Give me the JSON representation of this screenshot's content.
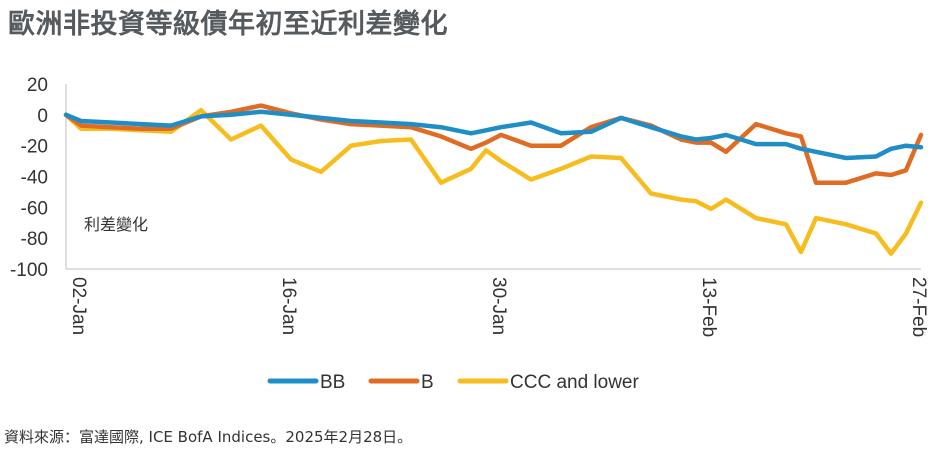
{
  "title": "歐洲非投資等級債年初至近利差變化",
  "source": "資料來源：富達國際, ICE BofA Indices。2025年2月28日。",
  "chart_data": {
    "type": "line",
    "title": "歐洲非投資等級債年初至近利差變化",
    "annotation": "利差變化",
    "ylim": [
      -100,
      20
    ],
    "yticks": [
      20,
      0,
      -20,
      -40,
      -60,
      -80,
      -100
    ],
    "xlim": [
      0,
      57
    ],
    "x_tick_positions": [
      0,
      14,
      28,
      42,
      56
    ],
    "x_tick_labels": [
      "02-Jan",
      "16-Jan",
      "30-Jan",
      "13-Feb",
      "27-Feb"
    ],
    "legend_position": "bottom",
    "grid": false,
    "series": [
      {
        "name": "BB",
        "color": "#1f8ec7",
        "x": [
          0,
          1,
          3,
          5,
          7,
          9,
          11,
          13,
          15,
          17,
          19,
          21,
          23,
          25,
          27,
          28,
          29,
          31,
          33,
          35,
          37,
          39,
          41,
          42,
          43,
          44,
          46,
          48,
          49,
          50,
          52,
          54,
          55,
          56,
          57
        ],
        "y": [
          0,
          -4,
          -5,
          -6,
          -7,
          -1,
          0,
          2,
          0,
          -2,
          -4,
          -5,
          -6,
          -8,
          -12,
          -10,
          -8,
          -5,
          -12,
          -11,
          -2,
          -8,
          -14,
          -16,
          -15,
          -13,
          -19,
          -19,
          -22,
          -24,
          -28,
          -27,
          -22,
          -20,
          -21
        ]
      },
      {
        "name": "B",
        "color": "#e06c23",
        "x": [
          0,
          1,
          3,
          5,
          7,
          9,
          11,
          13,
          15,
          17,
          19,
          21,
          23,
          25,
          27,
          28,
          29,
          31,
          33,
          35,
          37,
          39,
          41,
          42,
          43,
          44,
          46,
          48,
          49,
          50,
          52,
          54,
          55,
          56,
          57
        ],
        "y": [
          0,
          -7,
          -8,
          -9,
          -9,
          -1,
          2,
          6,
          1,
          -3,
          -6,
          -7,
          -8,
          -14,
          -22,
          -18,
          -13,
          -20,
          -20,
          -8,
          -2,
          -7,
          -16,
          -18,
          -18,
          -24,
          -6,
          -12,
          -14,
          -44,
          -44,
          -38,
          -39,
          -36,
          -13
        ]
      },
      {
        "name": "CCC and lower",
        "color": "#f7bd1f",
        "x": [
          0,
          1,
          3,
          5,
          7,
          9,
          11,
          13,
          15,
          17,
          19,
          21,
          23,
          25,
          27,
          28,
          29,
          31,
          33,
          35,
          37,
          39,
          41,
          42,
          43,
          44,
          46,
          48,
          49,
          50,
          52,
          54,
          55,
          56,
          57
        ],
        "y": [
          0,
          -9,
          -9,
          -10,
          -11,
          3,
          -16,
          -7,
          -29,
          -37,
          -20,
          -17,
          -16,
          -44,
          -35,
          -23,
          -30,
          -42,
          -35,
          -27,
          -28,
          -51,
          -55,
          -56,
          -61,
          -55,
          -67,
          -71,
          -89,
          -67,
          -71,
          -77,
          -90,
          -77,
          -57
        ]
      }
    ]
  }
}
